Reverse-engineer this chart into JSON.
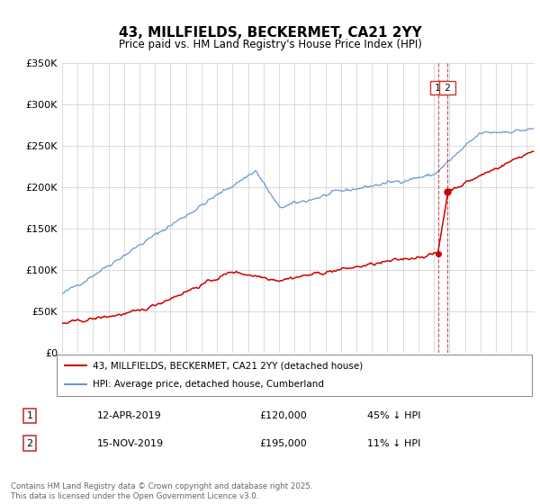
{
  "title": "43, MILLFIELDS, BECKERMET, CA21 2YY",
  "subtitle": "Price paid vs. HM Land Registry's House Price Index (HPI)",
  "ylim": [
    0,
    350000
  ],
  "yticks": [
    0,
    50000,
    100000,
    150000,
    200000,
    250000,
    300000,
    350000
  ],
  "ytick_labels": [
    "£0",
    "£50K",
    "£100K",
    "£150K",
    "£200K",
    "£250K",
    "£300K",
    "£350K"
  ],
  "xlim_start": 1995.0,
  "xlim_end": 2025.5,
  "red_color": "#cc0000",
  "blue_color": "#6699cc",
  "dashed_color": "#cc0000",
  "legend_label_red": "43, MILLFIELDS, BECKERMET, CA21 2YY (detached house)",
  "legend_label_blue": "HPI: Average price, detached house, Cumberland",
  "transaction1_label": "1",
  "transaction1_date": "12-APR-2019",
  "transaction1_price": "£120,000",
  "transaction1_hpi": "45% ↓ HPI",
  "transaction1_year": 2019.28,
  "transaction1_red_y": 120000,
  "transaction2_label": "2",
  "transaction2_date": "15-NOV-2019",
  "transaction2_price": "£195,000",
  "transaction2_hpi": "11% ↓ HPI",
  "transaction2_year": 2019.88,
  "transaction2_red_y": 195000,
  "footer": "Contains HM Land Registry data © Crown copyright and database right 2025.\nThis data is licensed under the Open Government Licence v3.0.",
  "background_color": "#ffffff",
  "grid_color": "#cccccc"
}
